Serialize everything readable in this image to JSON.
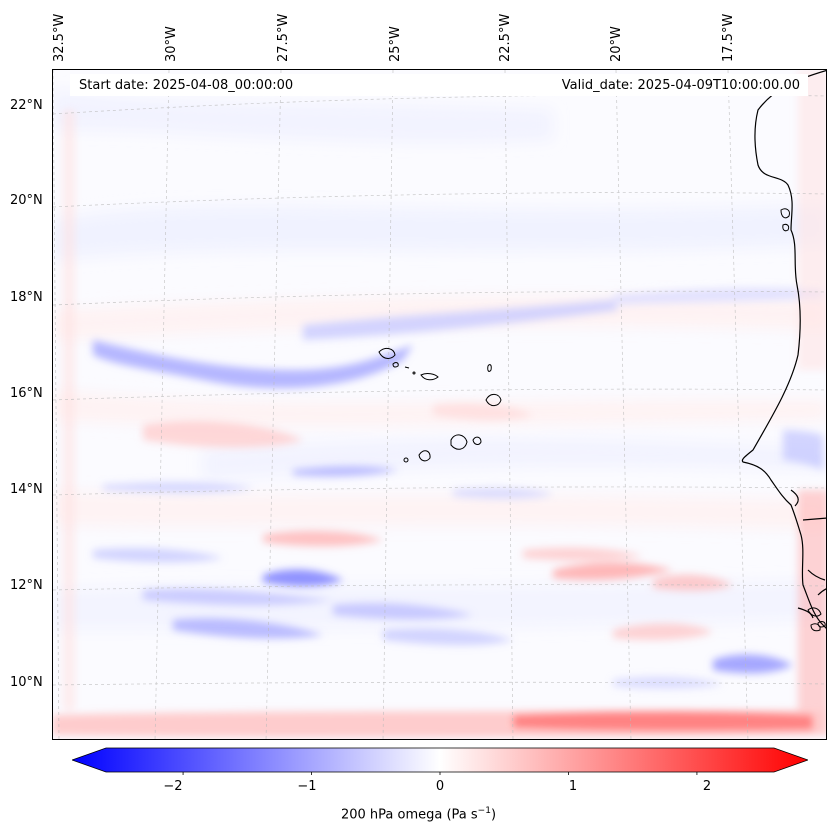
{
  "header": {
    "start_date": "Start date: 2025-04-08_00:00:00",
    "valid_date": "Valid_date: 2025-04-09T10:00:00.00"
  },
  "axes": {
    "longitude_labels": [
      "32.5°W",
      "30°W",
      "27.5°W",
      "25°W",
      "22.5°W",
      "20°W",
      "17.5°W"
    ],
    "latitude_labels": [
      "22°N",
      "20°N",
      "18°N",
      "16°N",
      "14°N",
      "12°N",
      "10°N"
    ]
  },
  "colorbar": {
    "ticks": [
      "−2",
      "−1",
      "0",
      "1",
      "2"
    ],
    "label_main": "200 hPa omega (Pa s",
    "label_exp": "−1",
    "label_end": ")",
    "range": [
      -2.6,
      2.6
    ],
    "low_color": "#0000ff",
    "mid_color": "#ffffff",
    "high_color": "#ff0000"
  },
  "map": {
    "projection": "lambert conformal",
    "extent_lon": [
      -33.0,
      -16.0
    ],
    "extent_lat": [
      8.9,
      22.7
    ],
    "features": [
      "coastline",
      "gridlines",
      "Cape Verde islands"
    ]
  }
}
